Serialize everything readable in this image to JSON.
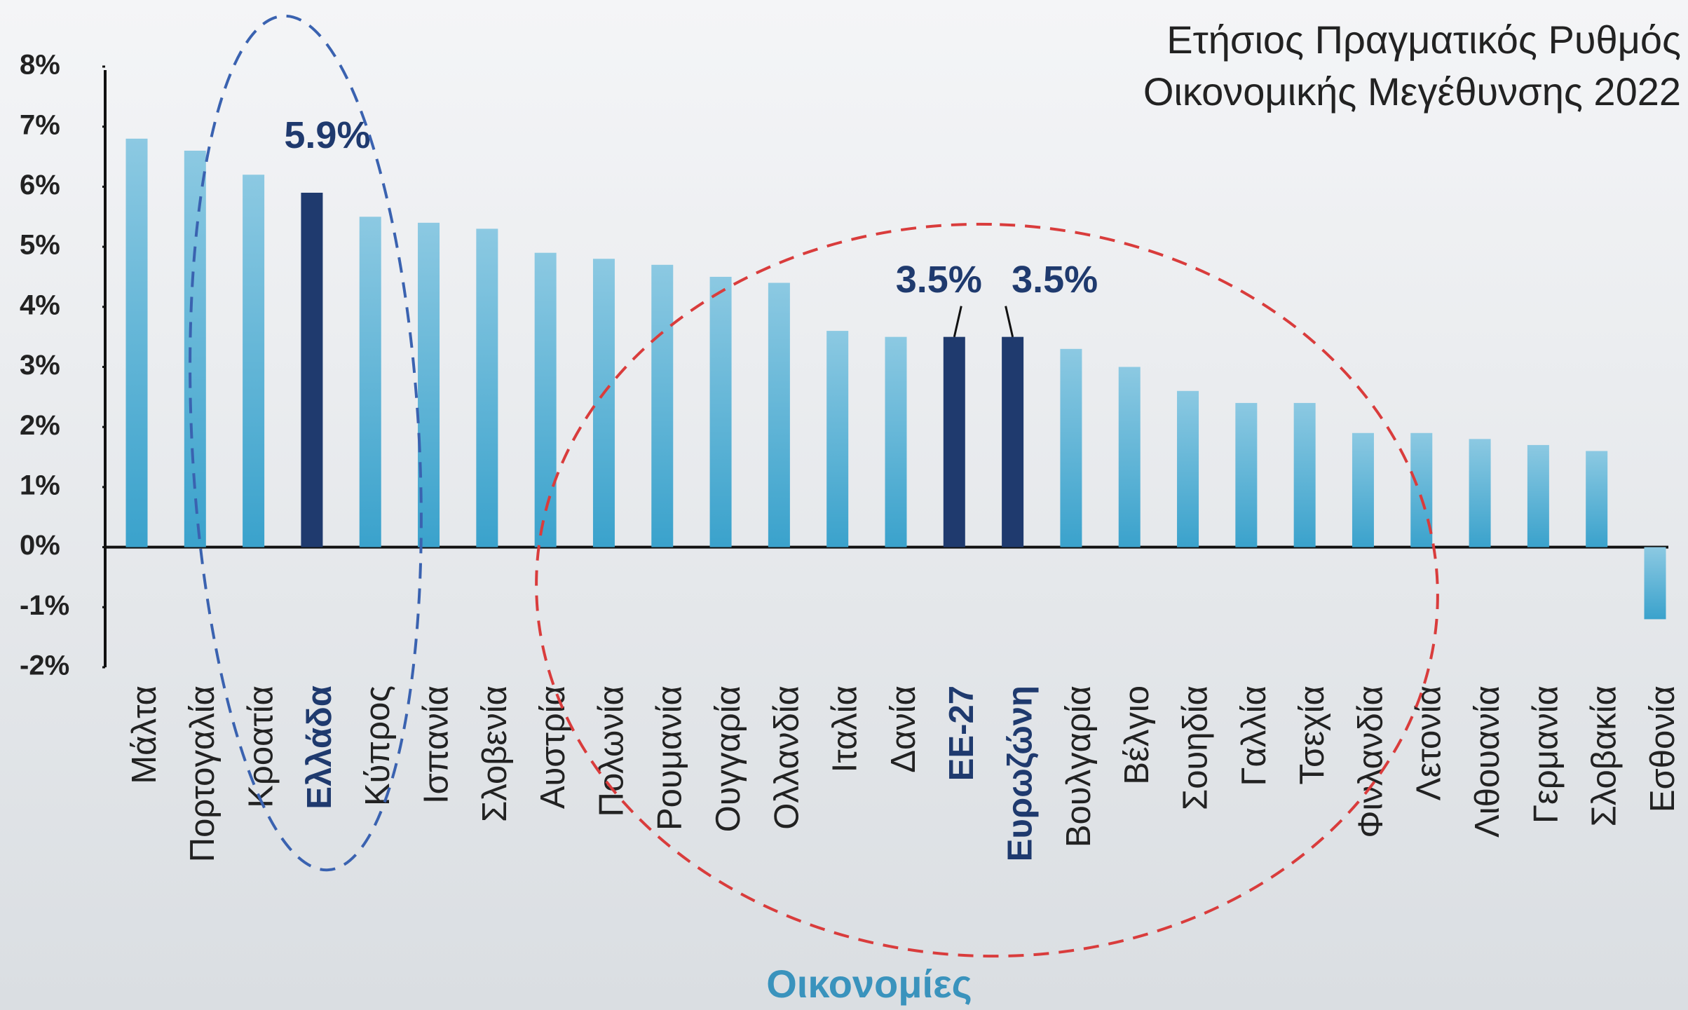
{
  "chart_data": {
    "type": "bar",
    "title": [
      "Ετήσιος Πραγματικός Ρυθμός",
      "Οικονομικής Μεγέθυνσης 2022"
    ],
    "x_label": "Οικονομίες",
    "categories": [
      "Μάλτα",
      "Πορτογαλία",
      "Κροατία",
      "Ελλάδα",
      "Κύπρος",
      "Ισπανία",
      "Σλοβενία",
      "Αυστρία",
      "Πολωνία",
      "Ρουμανία",
      "Ουγγαρία",
      "Ολλανδία",
      "Ιταλία",
      "Δανία",
      "ΕΕ-27",
      "Ευρωζώνη",
      "Βουλγαρία",
      "Βέλγιο",
      "Σουηδία",
      "Γαλλία",
      "Τσεχία",
      "Φινλανδία",
      "Λετονία",
      "Λιθουανία",
      "Γερμανία",
      "Σλοβακία",
      "Εσθονία"
    ],
    "values": [
      6.8,
      6.6,
      6.2,
      5.9,
      5.5,
      5.4,
      5.3,
      4.9,
      4.8,
      4.7,
      4.5,
      4.4,
      3.6,
      3.5,
      3.5,
      3.5,
      3.3,
      3.0,
      2.6,
      2.4,
      2.4,
      1.9,
      1.9,
      1.8,
      1.7,
      1.6,
      -1.2
    ],
    "value_labels": [
      null,
      null,
      null,
      "5.9%",
      null,
      null,
      null,
      null,
      null,
      null,
      null,
      null,
      null,
      null,
      "3.5%",
      "3.5%",
      null,
      null,
      null,
      null,
      null,
      null,
      null,
      null,
      null,
      null,
      null
    ],
    "colors": [
      "#4aa9d2",
      "#4aa9d2",
      "#4aa9d2",
      "#1f3a6e",
      "#4aa9d2",
      "#4aa9d2",
      "#4aa9d2",
      "#4aa9d2",
      "#4aa9d2",
      "#4aa9d2",
      "#4aa9d2",
      "#4aa9d2",
      "#4aa9d2",
      "#4aa9d2",
      "#1f3a6e",
      "#1f3a6e",
      "#4aa9d2",
      "#4aa9d2",
      "#4aa9d2",
      "#4aa9d2",
      "#4aa9d2",
      "#4aa9d2",
      "#4aa9d2",
      "#4aa9d2",
      "#4aa9d2",
      "#4aa9d2",
      "#4aa9d2"
    ],
    "ylim": [
      -2,
      8
    ],
    "yticks": [
      {
        "value": -2,
        "label": "-2%"
      },
      {
        "value": -1,
        "label": "-1%"
      },
      {
        "value": 0,
        "label": "0%"
      },
      {
        "value": 1,
        "label": "1%"
      },
      {
        "value": 2,
        "label": "2%"
      },
      {
        "value": 3,
        "label": "3%"
      },
      {
        "value": 4,
        "label": "4%"
      },
      {
        "value": 5,
        "label": "5%"
      },
      {
        "value": 6,
        "label": "6%"
      },
      {
        "value": 7,
        "label": "7%"
      },
      {
        "value": 8,
        "label": "8%"
      }
    ],
    "grid": false
  }
}
